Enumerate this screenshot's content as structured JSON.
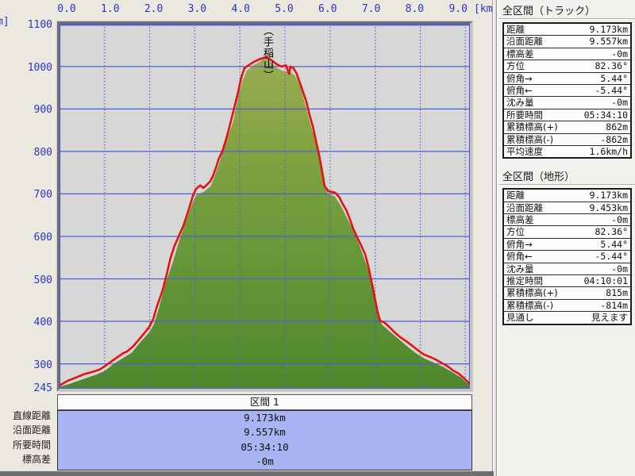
{
  "axes": {
    "x_tick_labels": [
      "0.0",
      "1.0",
      "2.0",
      "3.0",
      "4.0",
      "5.0",
      "6.0",
      "7.0",
      "8.0",
      "9.0"
    ],
    "x_unit": "[km]",
    "y_tick_labels": [
      "1100",
      "1000",
      "900",
      "800",
      "700",
      "600",
      "500",
      "400",
      "300",
      "245"
    ],
    "y_unit_clipped": "m]"
  },
  "peak": {
    "label": "（手稲山）"
  },
  "sidebar": {
    "track_panel": {
      "title": "全区間（トラック）",
      "rows": [
        {
          "label": "距離",
          "value": "9.173km"
        },
        {
          "label": "沿面距離",
          "value": "9.557km"
        },
        {
          "label": "標高差",
          "value": "-0m"
        },
        {
          "label": "方位",
          "value": "82.36°"
        },
        {
          "label": "俯角→",
          "value": "5.44°"
        },
        {
          "label": "俯角←",
          "value": "-5.44°"
        },
        {
          "label": "沈み量",
          "value": "-0m"
        },
        {
          "label": "所要時間",
          "value": "05:34:10"
        },
        {
          "label": "累積標高(+)",
          "value": "862m"
        },
        {
          "label": "累積標高(-)",
          "value": "-862m"
        },
        {
          "label": "平均速度",
          "value": "1.6km/h"
        }
      ]
    },
    "terrain_panel": {
      "title": "全区間（地形）",
      "rows": [
        {
          "label": "距離",
          "value": "9.173km"
        },
        {
          "label": "沿面距離",
          "value": "9.453km"
        },
        {
          "label": "標高差",
          "value": "-0m"
        },
        {
          "label": "方位",
          "value": "82.36°"
        },
        {
          "label": "俯角→",
          "value": "5.44°"
        },
        {
          "label": "俯角←",
          "value": "-5.44°"
        },
        {
          "label": "沈み量",
          "value": "-0m"
        },
        {
          "label": "推定時間",
          "value": "04:10:01"
        },
        {
          "label": "累積標高(+)",
          "value": "815m"
        },
        {
          "label": "累積標高(-)",
          "value": "-814m"
        },
        {
          "label": "見通し",
          "value": "見えます"
        }
      ]
    }
  },
  "bottom_summary": {
    "header": "区間 1",
    "rows": [
      {
        "label": "直線距離",
        "value": "9.173km"
      },
      {
        "label": "沿面距離",
        "value": "9.557km"
      },
      {
        "label": "所要時間",
        "value": "05:34:10"
      },
      {
        "label": "標高差",
        "value": "-0m"
      }
    ]
  },
  "colors": {
    "axis_text": "#2a35c8",
    "grid_line": "#4f5fd2",
    "plot_bg": "#d7d7d7",
    "track_red": "#e61111",
    "terrain_gradient": [
      "#a2b057",
      "#86a443",
      "#659738",
      "#4e872c"
    ],
    "summary_bg": "#a9b4f2",
    "app_bg": "#ebe8e0",
    "sidebar_bg": "#f2f1ee"
  },
  "chart_data": {
    "type": "area",
    "title": "",
    "xlabel": "[km]",
    "ylabel": "m",
    "xlim": [
      0,
      9.1
    ],
    "ylim": [
      245,
      1100
    ],
    "grid": true,
    "x_tick_values": [
      0,
      1,
      2,
      3,
      4,
      5,
      6,
      7,
      8,
      9
    ],
    "x_gridlines_km": [
      1,
      2,
      3,
      4,
      5,
      6,
      7,
      8,
      9
    ],
    "y_gridlines_m": [
      300,
      400,
      500,
      600,
      700,
      800,
      900,
      1000,
      1100
    ],
    "y_tick_values": [
      1100,
      1000,
      900,
      800,
      700,
      600,
      500,
      400,
      300,
      245
    ],
    "annotations": [
      {
        "text": "（手稲山）",
        "x_km": 4.58,
        "y_m": 1023
      }
    ],
    "series": [
      {
        "name": "terrain-profile",
        "type": "area",
        "points": [
          [
            0.0,
            246
          ],
          [
            0.2,
            252
          ],
          [
            0.5,
            263
          ],
          [
            0.8,
            274
          ],
          [
            1.0,
            283
          ],
          [
            1.2,
            300
          ],
          [
            1.4,
            313
          ],
          [
            1.6,
            326
          ],
          [
            1.8,
            352
          ],
          [
            2.0,
            375
          ],
          [
            2.1,
            395
          ],
          [
            2.2,
            430
          ],
          [
            2.35,
            490
          ],
          [
            2.5,
            535
          ],
          [
            2.65,
            588
          ],
          [
            2.8,
            635
          ],
          [
            2.95,
            680
          ],
          [
            3.05,
            700
          ],
          [
            3.2,
            705
          ],
          [
            3.35,
            718
          ],
          [
            3.45,
            745
          ],
          [
            3.55,
            775
          ],
          [
            3.65,
            815
          ],
          [
            3.75,
            840
          ],
          [
            3.85,
            870
          ],
          [
            3.95,
            925
          ],
          [
            4.05,
            965
          ],
          [
            4.15,
            990
          ],
          [
            4.3,
            1003
          ],
          [
            4.45,
            1012
          ],
          [
            4.55,
            1023
          ],
          [
            4.65,
            1015
          ],
          [
            4.8,
            998
          ],
          [
            4.95,
            990
          ],
          [
            5.05,
            988
          ],
          [
            5.15,
            985
          ],
          [
            5.25,
            975
          ],
          [
            5.35,
            950
          ],
          [
            5.45,
            910
          ],
          [
            5.55,
            870
          ],
          [
            5.65,
            835
          ],
          [
            5.75,
            792
          ],
          [
            5.85,
            740
          ],
          [
            5.95,
            700
          ],
          [
            6.1,
            695
          ],
          [
            6.25,
            670
          ],
          [
            6.4,
            638
          ],
          [
            6.55,
            605
          ],
          [
            6.7,
            565
          ],
          [
            6.85,
            520
          ],
          [
            6.95,
            470
          ],
          [
            7.05,
            420
          ],
          [
            7.15,
            392
          ],
          [
            7.3,
            378
          ],
          [
            7.5,
            360
          ],
          [
            7.7,
            342
          ],
          [
            7.9,
            325
          ],
          [
            8.1,
            312
          ],
          [
            8.3,
            303
          ],
          [
            8.5,
            293
          ],
          [
            8.7,
            281
          ],
          [
            8.9,
            268
          ],
          [
            9.05,
            254
          ],
          [
            9.1,
            248
          ]
        ]
      },
      {
        "name": "track-elevation",
        "type": "line",
        "points": [
          [
            0.0,
            249
          ],
          [
            0.18,
            260
          ],
          [
            0.35,
            267
          ],
          [
            0.53,
            275
          ],
          [
            0.7,
            280
          ],
          [
            0.88,
            286
          ],
          [
            1.0,
            294
          ],
          [
            1.14,
            305
          ],
          [
            1.29,
            316
          ],
          [
            1.41,
            325
          ],
          [
            1.5,
            329
          ],
          [
            1.64,
            342
          ],
          [
            1.76,
            357
          ],
          [
            1.88,
            372
          ],
          [
            1.99,
            387
          ],
          [
            2.08,
            406
          ],
          [
            2.15,
            432
          ],
          [
            2.2,
            447
          ],
          [
            2.29,
            475
          ],
          [
            2.38,
            512
          ],
          [
            2.46,
            549
          ],
          [
            2.55,
            578
          ],
          [
            2.66,
            604
          ],
          [
            2.75,
            626
          ],
          [
            2.83,
            652
          ],
          [
            2.9,
            675
          ],
          [
            2.96,
            697
          ],
          [
            3.03,
            712
          ],
          [
            3.12,
            720
          ],
          [
            3.19,
            714
          ],
          [
            3.26,
            721
          ],
          [
            3.34,
            729
          ],
          [
            3.4,
            742
          ],
          [
            3.47,
            762
          ],
          [
            3.54,
            785
          ],
          [
            3.61,
            800
          ],
          [
            3.68,
            824
          ],
          [
            3.75,
            850
          ],
          [
            3.82,
            880
          ],
          [
            3.89,
            910
          ],
          [
            3.96,
            940
          ],
          [
            4.03,
            974
          ],
          [
            4.1,
            996
          ],
          [
            4.19,
            1003
          ],
          [
            4.31,
            1011
          ],
          [
            4.45,
            1018
          ],
          [
            4.58,
            1022
          ],
          [
            4.7,
            1015
          ],
          [
            4.82,
            1005
          ],
          [
            4.93,
            1000
          ],
          [
            5.02,
            1003
          ],
          [
            5.09,
            983
          ],
          [
            5.12,
            1000
          ],
          [
            5.19,
            996
          ],
          [
            5.26,
            983
          ],
          [
            5.33,
            962
          ],
          [
            5.4,
            940
          ],
          [
            5.47,
            918
          ],
          [
            5.54,
            888
          ],
          [
            5.62,
            858
          ],
          [
            5.69,
            824
          ],
          [
            5.76,
            790
          ],
          [
            5.83,
            749
          ],
          [
            5.88,
            718
          ],
          [
            5.97,
            706
          ],
          [
            6.11,
            703
          ],
          [
            6.2,
            693
          ],
          [
            6.27,
            678
          ],
          [
            6.36,
            662
          ],
          [
            6.43,
            643
          ],
          [
            6.51,
            619
          ],
          [
            6.6,
            598
          ],
          [
            6.69,
            578
          ],
          [
            6.78,
            557
          ],
          [
            6.85,
            529
          ],
          [
            6.9,
            503
          ],
          [
            6.95,
            479
          ],
          [
            7.01,
            445
          ],
          [
            7.06,
            419
          ],
          [
            7.11,
            402
          ],
          [
            7.22,
            396
          ],
          [
            7.31,
            387
          ],
          [
            7.43,
            374
          ],
          [
            7.55,
            363
          ],
          [
            7.69,
            353
          ],
          [
            7.83,
            342
          ],
          [
            7.96,
            331
          ],
          [
            8.08,
            322
          ],
          [
            8.22,
            316
          ],
          [
            8.36,
            309
          ],
          [
            8.49,
            301
          ],
          [
            8.61,
            294
          ],
          [
            8.73,
            284
          ],
          [
            8.85,
            277
          ],
          [
            8.96,
            267
          ],
          [
            9.05,
            258
          ],
          [
            9.1,
            252
          ]
        ]
      }
    ]
  }
}
